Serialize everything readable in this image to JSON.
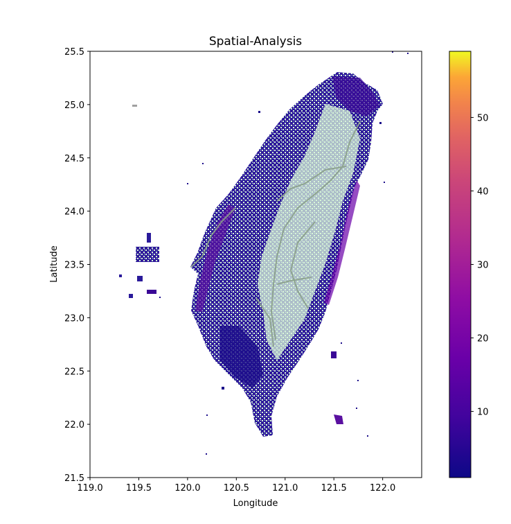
{
  "chart_data": {
    "type": "heatmap",
    "title": "Spatial-Analysis",
    "xlabel": "Longitude",
    "ylabel": "Latitude",
    "xlim": [
      119.0,
      122.4
    ],
    "ylim": [
      21.5,
      25.5
    ],
    "xticks": [
      "119.0",
      "119.5",
      "120.0",
      "120.5",
      "121.0",
      "121.5",
      "122.0"
    ],
    "yticks": [
      "21.5",
      "22.0",
      "22.5",
      "23.0",
      "23.5",
      "24.0",
      "24.5",
      "25.0",
      "25.5"
    ],
    "colorbar": {
      "colormap": "plasma",
      "range": [
        1,
        59
      ],
      "ticks": [
        "10",
        "20",
        "30",
        "40",
        "50"
      ]
    },
    "background_land_color": "#d8f5d8",
    "road_color": "#8aa08a",
    "grid": false
  }
}
